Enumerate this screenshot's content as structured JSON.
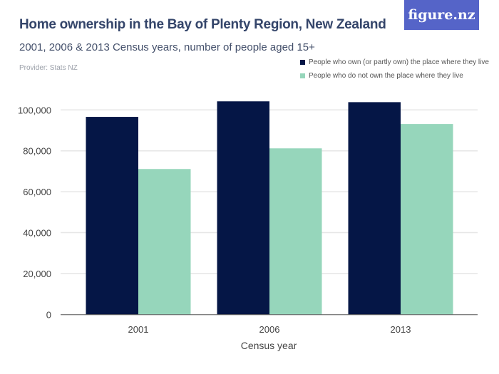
{
  "header": {
    "title": "Home ownership in the Bay of Plenty Region, New Zealand",
    "subtitle": "2001, 2006 & 2013 Census years, number of people aged 15+",
    "provider": "Provider: Stats NZ",
    "logo": "figure.nz"
  },
  "chart_data": {
    "type": "bar",
    "categories": [
      "2001",
      "2006",
      "2013"
    ],
    "series": [
      {
        "name": "People who own (or partly own) the place where they live",
        "values": [
          96600,
          104200,
          103800
        ],
        "color": "#051646"
      },
      {
        "name": "People who do not own the place where they live",
        "values": [
          71100,
          81200,
          93100
        ],
        "color": "#96d6bb"
      }
    ],
    "xlabel": "Census year",
    "ylabel": "",
    "ylim": [
      0,
      100000
    ],
    "yticks": [
      "0",
      "20,000",
      "40,000",
      "60,000",
      "80,000",
      "100,000"
    ],
    "grid": true,
    "legend": "top-right"
  }
}
